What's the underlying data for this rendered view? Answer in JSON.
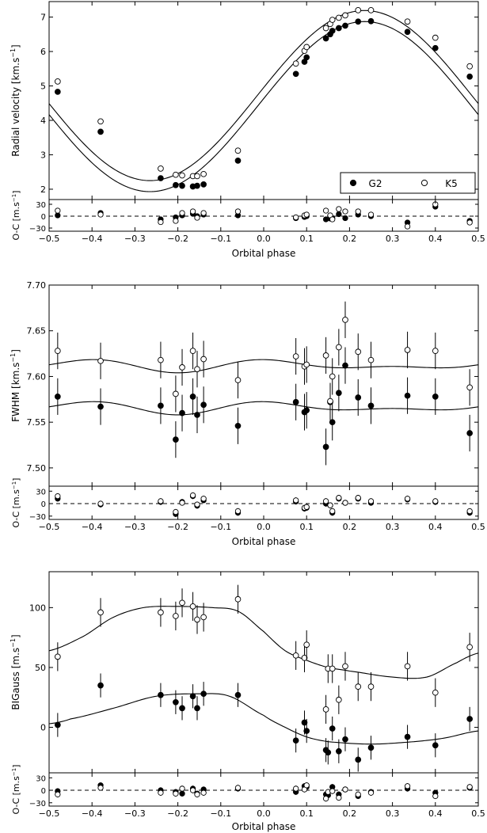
{
  "chart_data": [
    {
      "type": "scatter",
      "ylabel": "Radial velocity [km.s$^{-1}$]",
      "ylabel_main": "Radial velocity [km.s",
      "ylabel_tail": "]",
      "xlim": [
        -0.5,
        0.5
      ],
      "ylim": [
        1.7,
        7.45
      ],
      "yticks": [
        "2",
        "3",
        "4",
        "5",
        "6",
        "7"
      ],
      "ytick_values": [
        2,
        3,
        4,
        5,
        6,
        7
      ],
      "errorbars": false,
      "legend": {
        "placement": "bottom-right",
        "entries": [
          "G2",
          "K5"
        ]
      },
      "series": [
        {
          "name": "G2",
          "marker": "filled",
          "x": [
            -0.48,
            -0.38,
            -0.24,
            -0.205,
            -0.19,
            -0.165,
            -0.155,
            -0.14,
            -0.06,
            0.075,
            0.095,
            0.1,
            0.145,
            0.155,
            0.16,
            0.175,
            0.19,
            0.22,
            0.25,
            0.335,
            0.4,
            0.48
          ],
          "y": [
            4.83,
            3.67,
            2.32,
            2.12,
            2.1,
            2.08,
            2.1,
            2.14,
            2.83,
            5.35,
            5.7,
            5.83,
            6.38,
            6.5,
            6.6,
            6.68,
            6.75,
            6.87,
            6.88,
            6.57,
            6.1,
            5.27
          ],
          "model": {
            "a": 4.4,
            "k": 2.47,
            "phase_of_max": 0.235
          },
          "residuals": [
            2,
            8,
            -8,
            -3,
            2,
            6,
            0,
            4,
            2,
            -5,
            -2,
            0,
            -8,
            -6,
            -5,
            5,
            -5,
            4,
            0,
            -16,
            24,
            -12
          ]
        },
        {
          "name": "K5",
          "marker": "open",
          "x": [
            -0.48,
            -0.38,
            -0.24,
            -0.205,
            -0.19,
            -0.165,
            -0.155,
            -0.14,
            -0.06,
            0.075,
            0.095,
            0.1,
            0.145,
            0.155,
            0.16,
            0.175,
            0.19,
            0.22,
            0.25,
            0.335,
            0.4,
            0.48
          ],
          "y": [
            5.13,
            3.97,
            2.6,
            2.42,
            2.4,
            2.38,
            2.38,
            2.44,
            3.12,
            5.65,
            6.02,
            6.13,
            6.68,
            6.8,
            6.92,
            6.98,
            7.05,
            7.2,
            7.2,
            6.87,
            6.4,
            5.57
          ],
          "model": {
            "a": 4.72,
            "k": 2.47,
            "phase_of_max": 0.235
          },
          "residuals": [
            14,
            4,
            -15,
            -12,
            8,
            12,
            -4,
            8,
            12,
            -3,
            2,
            4,
            14,
            2,
            -8,
            18,
            12,
            12,
            4,
            -26,
            30,
            -16
          ]
        }
      ]
    },
    {
      "type": "scatter",
      "ylabel": "FWHM [km.s$^{-1}$]",
      "ylabel_main": "FWHM [km.s",
      "ylabel_tail": "]",
      "xlim": [
        -0.5,
        0.5
      ],
      "ylim": [
        7.48,
        7.7
      ],
      "yticks": [
        "7.50",
        "7.55",
        "7.60",
        "7.65",
        "7.70"
      ],
      "ytick_values": [
        7.5,
        7.55,
        7.6,
        7.65,
        7.7
      ],
      "errorbars": true,
      "series": [
        {
          "name": "G2",
          "marker": "filled",
          "x": [
            -0.48,
            -0.38,
            -0.24,
            -0.205,
            -0.19,
            -0.165,
            -0.155,
            -0.14,
            -0.06,
            0.075,
            0.095,
            0.1,
            0.145,
            0.155,
            0.16,
            0.175,
            0.19,
            0.22,
            0.25,
            0.335,
            0.4,
            0.48
          ],
          "y": [
            7.578,
            7.567,
            7.568,
            7.531,
            7.56,
            7.578,
            7.558,
            7.569,
            7.546,
            7.572,
            7.561,
            7.563,
            7.523,
            7.572,
            7.55,
            7.582,
            7.612,
            7.577,
            7.568,
            7.579,
            7.578,
            7.538
          ],
          "err": 0.02,
          "model": {
            "c": 7.566,
            "amps": [
              0.0045,
              0.0035
            ],
            "phases": [
              0.1,
              0.9
            ]
          },
          "residuals": [
            12,
            -2,
            4,
            -25,
            4,
            18,
            -5,
            8,
            -22,
            5,
            -12,
            -10,
            0,
            -4,
            -22,
            12,
            2,
            12,
            2,
            10,
            4,
            -22
          ]
        },
        {
          "name": "K5",
          "marker": "open",
          "x": [
            -0.48,
            -0.38,
            -0.24,
            -0.205,
            -0.19,
            -0.165,
            -0.155,
            -0.14,
            -0.06,
            0.075,
            0.095,
            0.1,
            0.145,
            0.155,
            0.16,
            0.175,
            0.19,
            0.22,
            0.25,
            0.335,
            0.4,
            0.48
          ],
          "y": [
            7.628,
            7.617,
            7.618,
            7.581,
            7.61,
            7.628,
            7.608,
            7.619,
            7.596,
            7.622,
            7.611,
            7.613,
            7.623,
            7.573,
            7.6,
            7.632,
            7.662,
            7.627,
            7.618,
            7.629,
            7.628,
            7.588
          ],
          "err": 0.02,
          "model": {
            "c": 7.612,
            "amps": [
              0.0045,
              0.0035
            ],
            "phases": [
              0.1,
              0.9
            ]
          },
          "residuals": [
            18,
            0,
            6,
            -20,
            2,
            20,
            -2,
            12,
            -18,
            8,
            -10,
            -8,
            6,
            -4,
            -18,
            14,
            2,
            14,
            6,
            12,
            6,
            -18
          ]
        }
      ]
    },
    {
      "type": "scatter",
      "ylabel": "BIGauss [m.s$^{-1}$]",
      "ylabel_main": "BIGauss [m.s",
      "ylabel_tail": "]",
      "xlim": [
        -0.5,
        0.5
      ],
      "ylim": [
        -38,
        130
      ],
      "yticks": [
        "0",
        "50",
        "100"
      ],
      "ytick_values": [
        0,
        50,
        100
      ],
      "errorbars": true,
      "series": [
        {
          "name": "G2",
          "marker": "filled",
          "x": [
            -0.48,
            -0.38,
            -0.24,
            -0.205,
            -0.19,
            -0.165,
            -0.155,
            -0.14,
            -0.06,
            0.075,
            0.095,
            0.1,
            0.145,
            0.15,
            0.16,
            0.175,
            0.19,
            0.22,
            0.25,
            0.335,
            0.4,
            0.48
          ],
          "y": [
            2,
            35,
            27,
            21,
            16,
            26,
            16,
            28,
            27,
            -11,
            4,
            -3,
            -19,
            -21,
            -1,
            -20,
            -10,
            -27,
            -17,
            -8,
            -15,
            7
          ],
          "err": 10,
          "model_points": [
            [
              -0.5,
              3
            ],
            [
              -0.45,
              7
            ],
            [
              -0.35,
              16
            ],
            [
              -0.25,
              26
            ],
            [
              -0.15,
              28
            ],
            [
              -0.08,
              26
            ],
            [
              0.0,
              10
            ],
            [
              0.05,
              0
            ],
            [
              0.1,
              -8
            ],
            [
              0.15,
              -12
            ],
            [
              0.25,
              -14
            ],
            [
              0.35,
              -12
            ],
            [
              0.42,
              -9
            ],
            [
              0.5,
              -3
            ]
          ],
          "residuals": [
            -2,
            12,
            0,
            -4,
            -8,
            4,
            -8,
            2,
            4,
            -4,
            10,
            8,
            -10,
            -12,
            8,
            -10,
            2,
            -14,
            -4,
            4,
            -6,
            6
          ]
        },
        {
          "name": "K5",
          "marker": "open",
          "x": [
            -0.48,
            -0.38,
            -0.24,
            -0.205,
            -0.19,
            -0.165,
            -0.155,
            -0.14,
            -0.06,
            0.075,
            0.095,
            0.1,
            0.145,
            0.15,
            0.16,
            0.175,
            0.19,
            0.22,
            0.25,
            0.335,
            0.4,
            0.48
          ],
          "y": [
            59,
            96,
            96,
            93,
            104,
            101,
            90,
            92,
            107,
            60,
            58,
            69,
            15,
            49,
            49,
            23,
            51,
            34,
            34,
            51,
            29,
            67
          ],
          "err": 12,
          "model_points": [
            [
              -0.5,
              64
            ],
            [
              -0.42,
              76
            ],
            [
              -0.35,
              92
            ],
            [
              -0.28,
              100
            ],
            [
              -0.2,
              101
            ],
            [
              -0.12,
              100
            ],
            [
              -0.06,
              97
            ],
            [
              0.0,
              80
            ],
            [
              0.05,
              64
            ],
            [
              0.1,
              56
            ],
            [
              0.15,
              50
            ],
            [
              0.2,
              47
            ],
            [
              0.3,
              42
            ],
            [
              0.38,
              42
            ],
            [
              0.45,
              54
            ],
            [
              0.5,
              62
            ]
          ],
          "residuals": [
            -10,
            6,
            -6,
            -8,
            4,
            0,
            -10,
            -6,
            6,
            4,
            2,
            12,
            -20,
            -4,
            -2,
            -18,
            2,
            -10,
            -6,
            10,
            -14,
            8
          ]
        }
      ]
    }
  ],
  "residual_axis": {
    "ylabel": "O-C [m.s$^{-1}$]",
    "ylabel_main": "O-C [m.s",
    "ylabel_tail": "]",
    "yticks": [
      "30",
      "0",
      "−30"
    ],
    "ytick_values": [
      30,
      0,
      -30
    ],
    "ylim": [
      -38,
      42
    ],
    "zero_line": "dashed"
  },
  "xaxis": {
    "label": "Orbital phase",
    "ticks": [
      "−0.5",
      "−0.4",
      "−0.3",
      "−0.2",
      "−0.1",
      "0.0",
      "0.1",
      "0.2",
      "0.3",
      "0.4",
      "0.5"
    ],
    "tick_values": [
      -0.5,
      -0.4,
      -0.3,
      -0.2,
      -0.1,
      0.0,
      0.1,
      0.2,
      0.3,
      0.4,
      0.5
    ]
  },
  "legend_labels": {
    "g2": "G2",
    "k5": "K5"
  }
}
